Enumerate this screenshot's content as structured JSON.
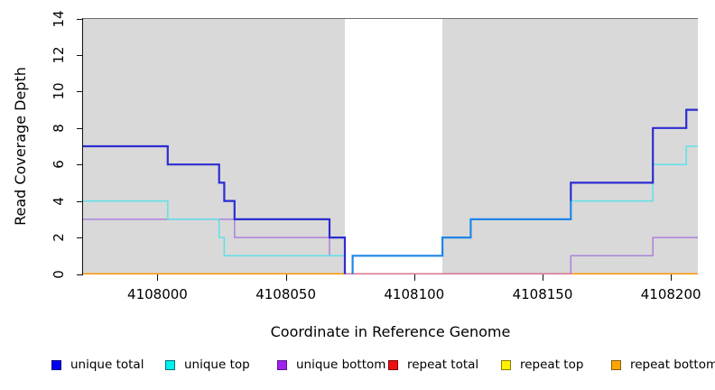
{
  "chart_data": {
    "type": "step-line",
    "title": "",
    "xlabel": "Coordinate in Reference Genome",
    "ylabel": "Read Coverage Depth",
    "xlim": [
      4107971,
      4108210.5
    ],
    "ylim": [
      0,
      14
    ],
    "x_ticks": [
      4108000,
      4108050,
      4108100,
      4108150,
      4108200
    ],
    "y_ticks": [
      0,
      2,
      4,
      6,
      8,
      10,
      12,
      14
    ],
    "grid": "off",
    "plot_background": "#d9d9d9",
    "highlight_region": {
      "from": 4108073,
      "to": 4108111,
      "color": "#ffffff"
    },
    "series": [
      {
        "name": "unique total",
        "color": "#0000ee",
        "steps": [
          [
            4107971,
            7
          ],
          [
            4108004,
            6
          ],
          [
            4108024,
            5
          ],
          [
            4108026,
            4
          ],
          [
            4108030,
            3
          ],
          [
            4108067,
            2
          ],
          [
            4108073,
            0
          ],
          [
            4108076,
            1
          ],
          [
            4108111,
            2
          ],
          [
            4108122,
            3
          ],
          [
            4108161,
            5
          ],
          [
            4108193,
            8
          ],
          [
            4108206,
            9
          ]
        ],
        "x_end": 4108210.5
      },
      {
        "name": "unique top",
        "color": "#00eeee",
        "steps": [
          [
            4107971,
            4
          ],
          [
            4108004,
            3
          ],
          [
            4108024,
            2
          ],
          [
            4108026,
            1
          ],
          [
            4108073,
            0
          ],
          [
            4108076,
            1
          ],
          [
            4108111,
            2
          ],
          [
            4108122,
            3
          ],
          [
            4108161,
            4
          ],
          [
            4108193,
            6
          ],
          [
            4108206,
            7
          ]
        ],
        "x_end": 4108210.5
      },
      {
        "name": "unique bottom",
        "color": "#a020f0",
        "steps": [
          [
            4107971,
            3
          ],
          [
            4108030,
            2
          ],
          [
            4108067,
            1
          ],
          [
            4108073,
            0
          ],
          [
            4108161,
            1
          ],
          [
            4108193,
            2
          ]
        ],
        "x_end": 4108210.5
      },
      {
        "name": "repeat total",
        "color": "#ee0000",
        "steps": [
          [
            4107971,
            0
          ]
        ],
        "x_end": 4108210.5
      },
      {
        "name": "repeat top",
        "color": "#ffff00",
        "steps": [
          [
            4107971,
            0
          ]
        ],
        "x_end": 4108210.5
      },
      {
        "name": "repeat bottom",
        "color": "#ffa500",
        "steps": [
          [
            4107971,
            0
          ]
        ],
        "x_end": 4108210.5
      }
    ]
  },
  "render": {
    "strokes": [
      {
        "name": "repeat-total-line",
        "color": "#dc2020",
        "width": 1.5,
        "steps": [
          [
            4107971,
            0
          ]
        ],
        "x_end": 4108210.5
      },
      {
        "name": "repeat-top-line",
        "color": "#ffe300",
        "width": 1.5,
        "steps": [
          [
            4107971,
            0
          ]
        ],
        "x_end": 4108210.5
      },
      {
        "name": "repeat-bottom-line",
        "color": "#ff9500",
        "width": 1.8,
        "steps": [
          [
            4107971,
            0
          ]
        ],
        "x_end": 4108210.5
      },
      {
        "name": "unique-bottom-line",
        "color": "#ac82da",
        "width": 1.5,
        "steps": [
          [
            4107971,
            3
          ],
          [
            4108030,
            2
          ],
          [
            4108067,
            1
          ],
          [
            4108073,
            0
          ],
          [
            4108161,
            1
          ],
          [
            4108193,
            2
          ]
        ],
        "x_end": 4108210.5
      },
      {
        "name": "unique-top-line",
        "color": "#5fe1e8",
        "width": 1.5,
        "steps": [
          [
            4107971,
            4
          ],
          [
            4108004,
            3
          ],
          [
            4108024,
            2
          ],
          [
            4108026,
            1
          ],
          [
            4108073,
            0
          ],
          [
            4108076,
            1
          ],
          [
            4108111,
            2
          ],
          [
            4108122,
            3
          ],
          [
            4108161,
            4
          ],
          [
            4108193,
            6
          ],
          [
            4108206,
            7
          ]
        ],
        "x_end": 4108210.5
      },
      {
        "name": "zero-overlap-line",
        "color": "#db6f97",
        "width": 1.5,
        "steps": [
          [
            4108073,
            0
          ]
        ],
        "x_end": 4108161
      },
      {
        "name": "unique-total-line-left",
        "color": "#2c2cd2",
        "width": 2.2,
        "steps": [
          [
            4107971,
            7
          ],
          [
            4108004,
            6
          ],
          [
            4108024,
            5
          ],
          [
            4108026,
            4
          ],
          [
            4108030,
            3
          ],
          [
            4108067,
            2
          ],
          [
            4108073,
            0
          ]
        ],
        "x_end": 4108073
      },
      {
        "name": "unique-total-line-right",
        "color": "#2c2cd2",
        "width": 2.2,
        "steps": [
          [
            4108161,
            4
          ],
          [
            4108161,
            5
          ],
          [
            4108193,
            8
          ],
          [
            4108206,
            9
          ]
        ],
        "x_end": 4108210.5
      },
      {
        "name": "total-top-overlap-line",
        "color": "#1e86e8",
        "width": 2.2,
        "steps": [
          [
            4108076,
            0
          ],
          [
            4108076,
            1
          ],
          [
            4108111,
            2
          ],
          [
            4108122,
            3
          ],
          [
            4108161,
            4
          ]
        ],
        "x_end": 4108161
      }
    ]
  },
  "legend": {
    "items": [
      {
        "label": "unique total",
        "fill": "#0000f0",
        "border": "#000080"
      },
      {
        "label": "unique top",
        "fill": "#00eeee",
        "border": "#006f74"
      },
      {
        "label": "unique bottom",
        "fill": "#a020f0",
        "border": "#551a8b"
      },
      {
        "label": "repeat total",
        "fill": "#ee1111",
        "border": "#7a0000"
      },
      {
        "label": "repeat top",
        "fill": "#fff200",
        "border": "#8a7a00"
      },
      {
        "label": "repeat bottom",
        "fill": "#ffa500",
        "border": "#8a5a00"
      }
    ]
  }
}
